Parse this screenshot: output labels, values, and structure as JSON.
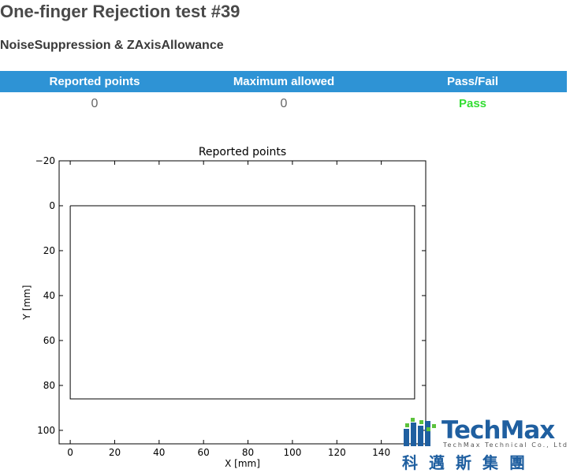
{
  "header": {
    "title": "One-finger Rejection test #39",
    "subtitle": "NoiseSuppression & ZAxisAllowance"
  },
  "table": {
    "columns": [
      "Reported points",
      "Maximum allowed",
      "Pass/Fail"
    ],
    "row": [
      "0",
      "0",
      "Pass"
    ]
  },
  "colors": {
    "header_bg": "#2e93d5",
    "pass": "#33dd33",
    "logo_blue": "#1f5fa0",
    "logo_green": "#5cc23b"
  },
  "chart_data": {
    "type": "line",
    "title": "Reported points",
    "xlabel": "X [mm]",
    "ylabel": "Y [mm]",
    "xlim": [
      -5,
      160
    ],
    "ylim": [
      106,
      -20
    ],
    "y_inverted": true,
    "grid": false,
    "xticks": [
      0,
      20,
      40,
      60,
      80,
      100,
      120,
      140
    ],
    "yticks": [
      -20,
      0,
      20,
      40,
      60,
      80,
      100
    ],
    "xtick_labels": [
      "0",
      "20",
      "40",
      "60",
      "80",
      "100",
      "120",
      "140"
    ],
    "ytick_labels": [
      "−20",
      "0",
      "20",
      "40",
      "60",
      "80",
      "100"
    ],
    "series": [
      {
        "x": [
          0,
          155,
          155,
          0,
          0
        ],
        "y": [
          0,
          0,
          86,
          86,
          0
        ]
      }
    ]
  },
  "logo": {
    "name": "TechMax",
    "tagline": "TechMax Technical Co., Ltd",
    "chinese": "科邁斯集團"
  }
}
